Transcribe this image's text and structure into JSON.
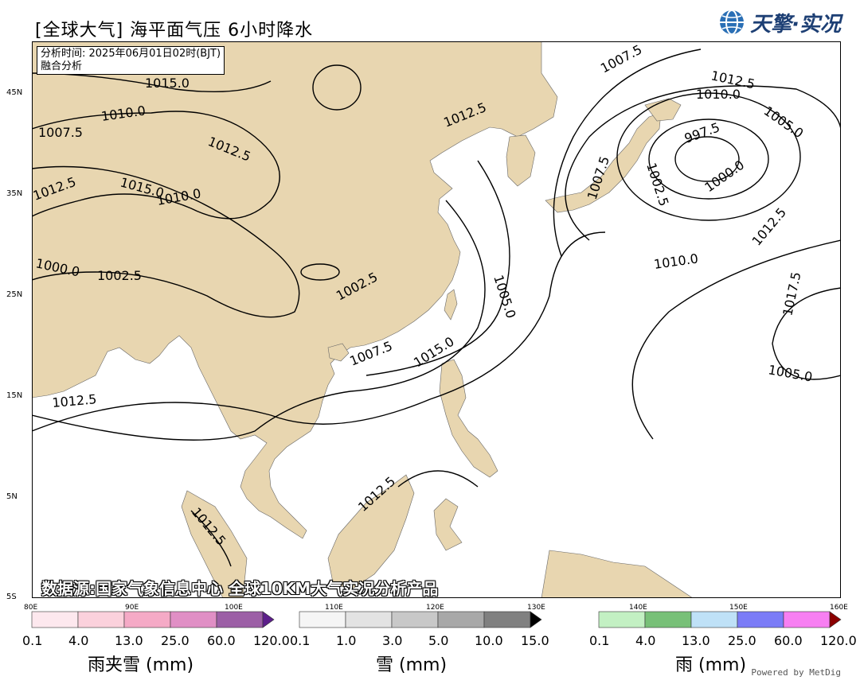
{
  "header": {
    "title": "[全球大气] 海平面气压 6小时降水",
    "brand": "天擎·实况",
    "brand_icon": "globe-icon"
  },
  "info": {
    "analysis_time": "分析时间: 2025年06月01日02时(BJT)",
    "method": "融合分析"
  },
  "source_text": "数据源:国家气象信息中心 全球10KM大气实况分析产品",
  "lat_labels": [
    "45N",
    "35N",
    "25N",
    "15N",
    "5N",
    "5S"
  ],
  "lon_labels": [
    "80E",
    "90E",
    "100E",
    "110E",
    "120E",
    "130E",
    "140E",
    "150E",
    "160E"
  ],
  "isobar_labels": [
    "1007.5",
    "1012.5",
    "1015.0",
    "1010.0",
    "1012.5",
    "1007.5",
    "1012.5",
    "1010.0",
    "1005.0",
    "997.5",
    "1000.0",
    "1002.5",
    "1007.5",
    "1012.5",
    "1015.0",
    "1010.0",
    "1012.5",
    "1000.0",
    "1002.5",
    "1002.5",
    "1010.0",
    "1017.5",
    "1005.0",
    "1007.5",
    "1015.0",
    "1005.0",
    "1012.5",
    "1012.5",
    "1012.5"
  ],
  "legends": {
    "mixed": {
      "title": "雨夹雪 (mm)",
      "ticks": [
        "0.1",
        "4.0",
        "13.0",
        "25.0",
        "60.0",
        "120.0"
      ],
      "colors": [
        "#fde8ee",
        "#fbd1dc",
        "#f5aac6",
        "#e08fc5",
        "#9c5fa6"
      ],
      "extend_color": "#5c1e8a"
    },
    "snow": {
      "title": "雪 (mm)",
      "ticks": [
        "0.1",
        "1.0",
        "3.0",
        "5.0",
        "10.0",
        "15.0"
      ],
      "colors": [
        "#f5f5f5",
        "#e3e3e3",
        "#c8c8c8",
        "#a8a8a8",
        "#808080"
      ],
      "extend_color": "#000000"
    },
    "rain": {
      "title": "雨 (mm)",
      "ticks": [
        "0.1",
        "4.0",
        "13.0",
        "25.0",
        "60.0",
        "120.0"
      ],
      "colors": [
        "#c3f0c3",
        "#78c078",
        "#bfe1f7",
        "#7b7cf7",
        "#f77ff2"
      ],
      "extend_color": "#8b0000"
    }
  },
  "footer": {
    "powered": "Powered by MetDig"
  },
  "colors": {
    "land": "#e8d6b0",
    "sea": "#ffffff",
    "isobar": "#000000"
  }
}
